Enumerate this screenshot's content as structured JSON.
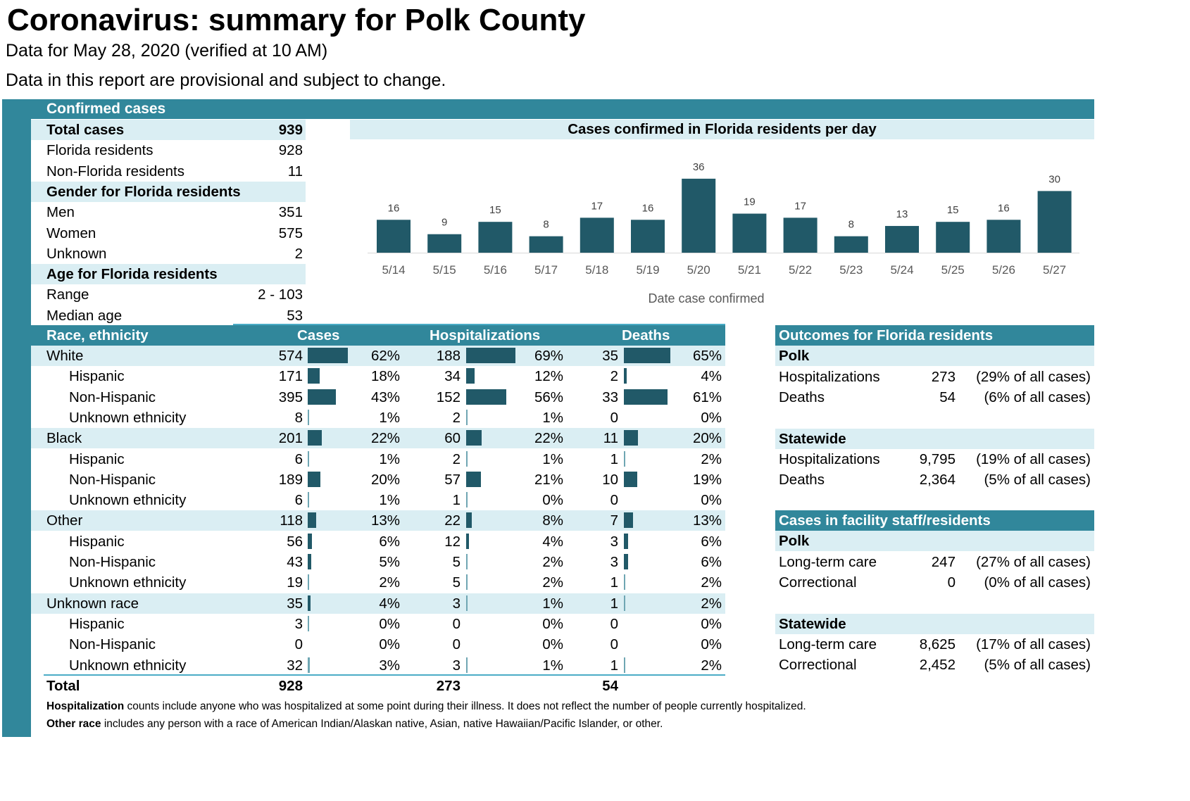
{
  "title": "Coronavirus: summary for Polk County",
  "subtitle": "Data for May 28, 2020 (verified at 10 AM)",
  "note": "Data in this report are provisional and subject to change.",
  "confirmed": {
    "header": "Confirmed cases",
    "rows": [
      {
        "label": "Total cases",
        "value": "939",
        "style": "band"
      },
      {
        "label": "Florida residents",
        "value": "928"
      },
      {
        "label": "Non-Florida residents",
        "value": "11"
      },
      {
        "label": "Gender for Florida residents",
        "value": "",
        "style": "band"
      },
      {
        "label": "Men",
        "value": "351"
      },
      {
        "label": "Women",
        "value": "575"
      },
      {
        "label": "Unknown",
        "value": "2"
      },
      {
        "label": "Age for Florida residents",
        "value": "",
        "style": "band"
      },
      {
        "label": "Range",
        "value": "2 - 103"
      },
      {
        "label": "Median age",
        "value": "53"
      }
    ]
  },
  "chart_data": {
    "type": "bar",
    "title": "Cases confirmed in Florida residents per day",
    "xlabel": "Date case confirmed",
    "ylabel": "",
    "categories": [
      "5/14",
      "5/15",
      "5/16",
      "5/17",
      "5/18",
      "5/19",
      "5/20",
      "5/21",
      "5/22",
      "5/23",
      "5/24",
      "5/25",
      "5/26",
      "5/27"
    ],
    "values": [
      16,
      9,
      15,
      8,
      17,
      16,
      36,
      19,
      17,
      8,
      13,
      15,
      16,
      30
    ],
    "color": "#215968",
    "grid": false
  },
  "race": {
    "headers": {
      "label": "Race, ethnicity",
      "cases": "Cases",
      "hosp": "Hospitalizations",
      "deaths": "Deaths"
    },
    "rows": [
      {
        "label": "White",
        "level": 0,
        "cases": "574",
        "cases_pct": "62%",
        "hosp": "188",
        "hosp_pct": "69%",
        "deaths": "35",
        "deaths_pct": "65%"
      },
      {
        "label": "Hispanic",
        "level": 1,
        "cases": "171",
        "cases_pct": "18%",
        "hosp": "34",
        "hosp_pct": "12%",
        "deaths": "2",
        "deaths_pct": "4%"
      },
      {
        "label": "Non-Hispanic",
        "level": 1,
        "cases": "395",
        "cases_pct": "43%",
        "hosp": "152",
        "hosp_pct": "56%",
        "deaths": "33",
        "deaths_pct": "61%"
      },
      {
        "label": "Unknown ethnicity",
        "level": 1,
        "cases": "8",
        "cases_pct": "1%",
        "hosp": "2",
        "hosp_pct": "1%",
        "deaths": "0",
        "deaths_pct": "0%"
      },
      {
        "label": "Black",
        "level": 0,
        "cases": "201",
        "cases_pct": "22%",
        "hosp": "60",
        "hosp_pct": "22%",
        "deaths": "11",
        "deaths_pct": "20%"
      },
      {
        "label": "Hispanic",
        "level": 1,
        "cases": "6",
        "cases_pct": "1%",
        "hosp": "2",
        "hosp_pct": "1%",
        "deaths": "1",
        "deaths_pct": "2%"
      },
      {
        "label": "Non-Hispanic",
        "level": 1,
        "cases": "189",
        "cases_pct": "20%",
        "hosp": "57",
        "hosp_pct": "21%",
        "deaths": "10",
        "deaths_pct": "19%"
      },
      {
        "label": "Unknown ethnicity",
        "level": 1,
        "cases": "6",
        "cases_pct": "1%",
        "hosp": "1",
        "hosp_pct": "0%",
        "deaths": "0",
        "deaths_pct": "0%"
      },
      {
        "label": "Other",
        "level": 0,
        "cases": "118",
        "cases_pct": "13%",
        "hosp": "22",
        "hosp_pct": "8%",
        "deaths": "7",
        "deaths_pct": "13%"
      },
      {
        "label": "Hispanic",
        "level": 1,
        "cases": "56",
        "cases_pct": "6%",
        "hosp": "12",
        "hosp_pct": "4%",
        "deaths": "3",
        "deaths_pct": "6%"
      },
      {
        "label": "Non-Hispanic",
        "level": 1,
        "cases": "43",
        "cases_pct": "5%",
        "hosp": "5",
        "hosp_pct": "2%",
        "deaths": "3",
        "deaths_pct": "6%"
      },
      {
        "label": "Unknown ethnicity",
        "level": 1,
        "cases": "19",
        "cases_pct": "2%",
        "hosp": "5",
        "hosp_pct": "2%",
        "deaths": "1",
        "deaths_pct": "2%"
      },
      {
        "label": "Unknown race",
        "level": 0,
        "cases": "35",
        "cases_pct": "4%",
        "hosp": "3",
        "hosp_pct": "1%",
        "deaths": "1",
        "deaths_pct": "2%"
      },
      {
        "label": "Hispanic",
        "level": 1,
        "cases": "3",
        "cases_pct": "0%",
        "hosp": "0",
        "hosp_pct": "0%",
        "deaths": "0",
        "deaths_pct": "0%"
      },
      {
        "label": "Non-Hispanic",
        "level": 1,
        "cases": "0",
        "cases_pct": "0%",
        "hosp": "0",
        "hosp_pct": "0%",
        "deaths": "0",
        "deaths_pct": "0%"
      },
      {
        "label": "Unknown ethnicity",
        "level": 1,
        "cases": "32",
        "cases_pct": "3%",
        "hosp": "3",
        "hosp_pct": "1%",
        "deaths": "1",
        "deaths_pct": "2%"
      }
    ],
    "total": {
      "label": "Total",
      "cases": "928",
      "hosp": "273",
      "deaths": "54"
    }
  },
  "outcomes": {
    "header": "Outcomes for Florida residents",
    "groups": [
      {
        "name": "Polk",
        "rows": [
          {
            "label": "Hospitalizations",
            "value": "273",
            "pct": "(29% of all cases)"
          },
          {
            "label": "Deaths",
            "value": "54",
            "pct": "(6% of all cases)"
          }
        ]
      },
      {
        "name": "Statewide",
        "rows": [
          {
            "label": "Hospitalizations",
            "value": "9,795",
            "pct": "(19% of all cases)"
          },
          {
            "label": "Deaths",
            "value": "2,364",
            "pct": "(5% of all cases)"
          }
        ]
      }
    ]
  },
  "facility": {
    "header": "Cases in facility staff/residents",
    "groups": [
      {
        "name": "Polk",
        "rows": [
          {
            "label": "Long-term care",
            "value": "247",
            "pct": "(27% of all cases)"
          },
          {
            "label": "Correctional",
            "value": "0",
            "pct": "(0% of all cases)"
          }
        ]
      },
      {
        "name": "Statewide",
        "rows": [
          {
            "label": "Long-term care",
            "value": "8,625",
            "pct": "(17% of all cases)"
          },
          {
            "label": "Correctional",
            "value": "2,452",
            "pct": "(5% of all cases)"
          }
        ]
      }
    ]
  },
  "footnotes": [
    {
      "bold": "Hospitalization",
      "text": " counts include anyone who was hospitalized at some point during their illness. It does not reflect the number of people currently hospitalized."
    },
    {
      "bold": "Other race",
      "text": " includes any person with a race of American Indian/Alaskan native, Asian, native Hawaiian/Pacific Islander, or other."
    }
  ]
}
